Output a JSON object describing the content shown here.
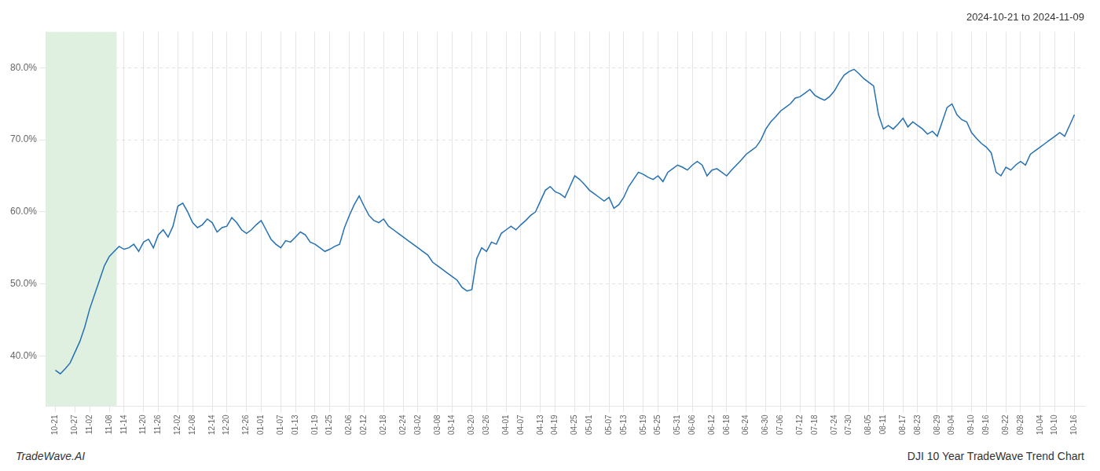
{
  "chart_data": {
    "type": "line",
    "title": "2024-10-21 to 2024-11-09",
    "annotations": [
      "TradeWave.AI",
      "DJI 10 Year TradeWave Trend Chart"
    ],
    "categories": [
      "10-21",
      null,
      null,
      null,
      "10-27",
      null,
      null,
      "11-02",
      null,
      null,
      null,
      "11-08",
      null,
      null,
      "11-14",
      null,
      null,
      null,
      "11-20",
      null,
      null,
      "11-26",
      null,
      null,
      null,
      "12-02",
      null,
      null,
      "12-08",
      null,
      null,
      null,
      "12-14",
      null,
      null,
      "12-20",
      null,
      null,
      null,
      "12-26",
      null,
      null,
      "01-01",
      null,
      null,
      null,
      "01-07",
      null,
      null,
      "01-13",
      null,
      null,
      null,
      "01-19",
      null,
      null,
      "01-25",
      null,
      null,
      null,
      "02-06",
      null,
      null,
      "02-12",
      null,
      null,
      null,
      "02-18",
      null,
      null,
      null,
      "02-24",
      null,
      null,
      "03-02",
      null,
      null,
      null,
      "03-08",
      null,
      null,
      "03-14",
      null,
      null,
      null,
      "03-20",
      null,
      null,
      "03-26",
      null,
      null,
      null,
      "04-01",
      null,
      null,
      "04-07",
      null,
      null,
      null,
      "04-13",
      null,
      null,
      "04-19",
      null,
      null,
      null,
      "04-25",
      null,
      null,
      "05-01",
      null,
      null,
      null,
      "05-07",
      null,
      null,
      "05-13",
      null,
      null,
      null,
      "05-19",
      null,
      null,
      "05-25",
      null,
      null,
      null,
      "05-31",
      null,
      null,
      "06-06",
      null,
      null,
      null,
      "06-12",
      null,
      null,
      "06-18",
      null,
      null,
      null,
      "06-24",
      null,
      null,
      null,
      "06-30",
      null,
      null,
      "07-06",
      null,
      null,
      null,
      "07-12",
      null,
      null,
      "07-18",
      null,
      null,
      null,
      "07-24",
      null,
      null,
      "07-30",
      null,
      null,
      null,
      "08-05",
      null,
      null,
      "08-11",
      null,
      null,
      null,
      "08-17",
      null,
      null,
      "08-23",
      null,
      null,
      null,
      "08-29",
      null,
      null,
      "09-04",
      null,
      null,
      null,
      "09-10",
      null,
      null,
      "09-16",
      null,
      null,
      null,
      "09-22",
      null,
      null,
      "09-28",
      null,
      null,
      null,
      "10-04",
      null,
      null,
      "10-10",
      null,
      null,
      null,
      "10-16"
    ],
    "values": [
      38.0,
      37.5,
      38.2,
      39.0,
      40.5,
      42.0,
      44.0,
      46.5,
      48.5,
      50.5,
      52.5,
      53.8,
      54.5,
      55.2,
      54.8,
      55.0,
      55.5,
      54.5,
      55.8,
      56.2,
      55.0,
      56.8,
      57.5,
      56.5,
      58.0,
      60.8,
      61.2,
      60.0,
      58.5,
      57.8,
      58.2,
      59.0,
      58.5,
      57.2,
      57.8,
      58.0,
      59.2,
      58.5,
      57.5,
      57.0,
      57.5,
      58.2,
      58.8,
      57.5,
      56.2,
      55.5,
      55.0,
      56.0,
      55.8,
      56.5,
      57.2,
      56.8,
      55.8,
      55.5,
      55.0,
      54.5,
      54.8,
      55.2,
      55.5,
      57.8,
      59.5,
      61.0,
      62.2,
      60.8,
      59.5,
      58.8,
      58.5,
      59.0,
      58.0,
      57.5,
      57.0,
      56.5,
      56.0,
      55.5,
      55.0,
      54.5,
      54.0,
      53.0,
      52.5,
      52.0,
      51.5,
      51.0,
      50.5,
      49.5,
      49.0,
      49.2,
      53.5,
      55.0,
      54.5,
      55.8,
      55.5,
      57.0,
      57.5,
      58.0,
      57.5,
      58.2,
      58.8,
      59.5,
      60.0,
      61.5,
      63.0,
      63.5,
      62.8,
      62.5,
      62.0,
      63.5,
      65.0,
      64.5,
      63.8,
      63.0,
      62.5,
      62.0,
      61.5,
      62.0,
      60.5,
      61.0,
      62.0,
      63.5,
      64.5,
      65.5,
      65.2,
      64.8,
      64.5,
      65.0,
      64.2,
      65.5,
      66.0,
      66.5,
      66.2,
      65.8,
      66.5,
      67.0,
      66.5,
      65.0,
      65.8,
      66.0,
      65.5,
      65.0,
      65.8,
      66.5,
      67.2,
      68.0,
      68.5,
      69.0,
      70.0,
      71.5,
      72.5,
      73.2,
      74.0,
      74.5,
      75.0,
      75.8,
      76.0,
      76.5,
      77.0,
      76.2,
      75.8,
      75.5,
      76.0,
      76.8,
      78.0,
      79.0,
      79.5,
      79.8,
      79.2,
      78.5,
      78.0,
      77.5,
      73.5,
      71.5,
      72.0,
      71.5,
      72.2,
      73.0,
      71.8,
      72.5,
      72.0,
      71.5,
      70.8,
      71.2,
      70.5,
      72.5,
      74.5,
      75.0,
      73.5,
      72.8,
      72.5,
      71.0,
      70.2,
      69.5,
      69.0,
      68.2,
      65.5,
      65.0,
      66.2,
      65.8,
      66.5,
      67.0,
      66.5,
      68.0,
      68.5,
      69.0,
      69.5,
      70.0,
      70.5,
      71.0,
      70.5,
      72.0,
      73.5
    ],
    "color": "#2470b3",
    "ylim": [
      33.0,
      85.0
    ],
    "yticks": [
      {
        "value": 40.0,
        "label": "40.0%"
      },
      {
        "value": 50.0,
        "label": "50.0%"
      },
      {
        "value": 60.0,
        "label": "60.0%"
      },
      {
        "value": 70.0,
        "label": "70.0%"
      },
      {
        "value": 80.0,
        "label": "80.0%"
      }
    ],
    "grid": true,
    "highlight": {
      "start": "10-21",
      "end": "11-08",
      "color": "#dff0e0"
    }
  }
}
